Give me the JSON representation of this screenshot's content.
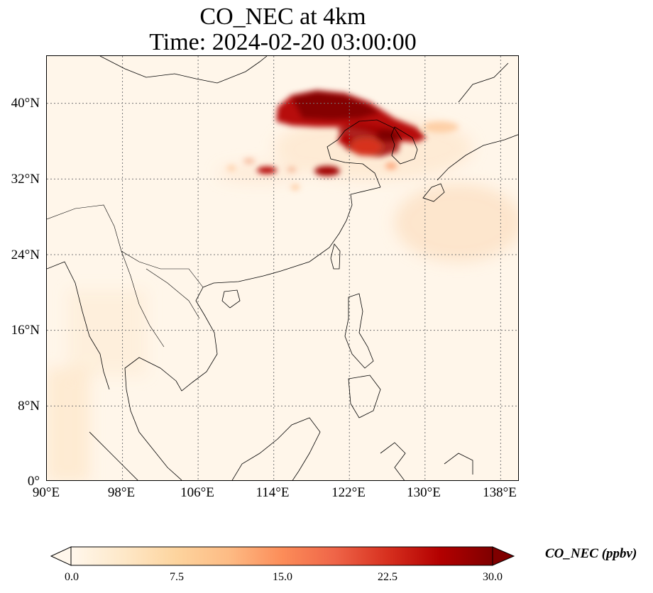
{
  "title": {
    "line1": "CO_NEC at 4km",
    "line2": "Time: 2024-02-20 03:00:00"
  },
  "map": {
    "lon_range": [
      90,
      140
    ],
    "lat_range": [
      0,
      45
    ],
    "lat_ticks": [
      {
        "value": 40,
        "label": "40°N"
      },
      {
        "value": 32,
        "label": "32°N"
      },
      {
        "value": 24,
        "label": "24°N"
      },
      {
        "value": 16,
        "label": "16°N"
      },
      {
        "value": 8,
        "label": "8°N"
      },
      {
        "value": 0,
        "label": "0°"
      }
    ],
    "lon_ticks": [
      {
        "value": 90,
        "label": "90°E"
      },
      {
        "value": 98,
        "label": "98°E"
      },
      {
        "value": 106,
        "label": "106°E"
      },
      {
        "value": 114,
        "label": "114°E"
      },
      {
        "value": 122,
        "label": "122°E"
      },
      {
        "value": 130,
        "label": "130°E"
      },
      {
        "value": 138,
        "label": "138°E"
      }
    ],
    "gridlines": true,
    "background_color": "#fff6ea",
    "coastline_color": "#000000"
  },
  "colorbar": {
    "label": "CO_NEC (ppbv)",
    "min": 0.0,
    "max": 30.0,
    "ticks": [
      "0.0",
      "7.5",
      "15.0",
      "22.5",
      "30.0"
    ],
    "extend": "both",
    "colormap": "OrRd",
    "colors": [
      "#fff7ec",
      "#fee8c8",
      "#fdd49e",
      "#fdbb84",
      "#fc8d59",
      "#ef6548",
      "#d7301f",
      "#b30000",
      "#7f0000"
    ]
  }
}
